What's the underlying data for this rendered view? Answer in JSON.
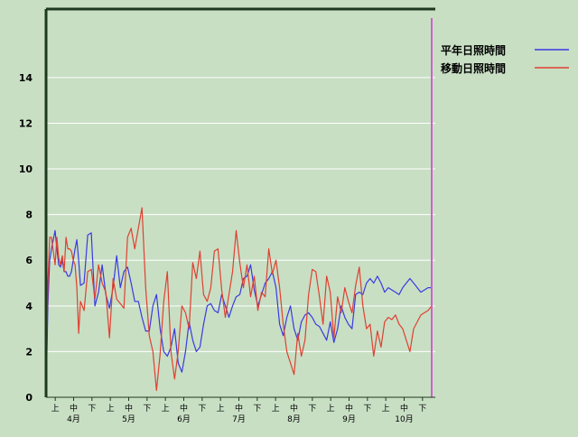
{
  "chart_data": {
    "type": "line",
    "title": "",
    "xlabel": "",
    "ylabel": "",
    "ylim": [
      0,
      17
    ],
    "y_ticks": [
      0,
      2,
      4,
      6,
      8,
      10,
      12,
      14
    ],
    "grid": "horizontal",
    "legend_position": "top-right",
    "x_range": [
      "2024-04-01",
      "2024-10-31"
    ],
    "period_labels": [
      "上",
      "中",
      "下",
      "上",
      "中",
      "下",
      "上",
      "中",
      "下",
      "上",
      "中",
      "下",
      "上",
      "中",
      "下",
      "上",
      "中",
      "下",
      "上",
      "中",
      "下"
    ],
    "month_labels": [
      "4月",
      "5月",
      "6月",
      "7月",
      "8月",
      "9月",
      "10月"
    ],
    "colors": {
      "background": "#c8dfc4",
      "axis": "#1e3a1e",
      "grid": "#ffffff",
      "series_1": "#3a3ae0",
      "series_2": "#e04030",
      "marker": "#d060d0"
    },
    "marker_line": {
      "date": "2024-10-31"
    },
    "series": [
      {
        "name": "平年日照時間",
        "x": [
          "2024-04-01",
          "2024-04-02",
          "2024-04-03",
          "2024-04-04",
          "2024-04-05",
          "2024-04-06",
          "2024-04-07",
          "2024-04-08",
          "2024-04-09",
          "2024-04-10",
          "2024-04-11",
          "2024-04-12",
          "2024-04-13",
          "2024-04-14",
          "2024-04-15",
          "2024-04-16",
          "2024-04-17",
          "2024-04-18",
          "2024-04-19",
          "2024-04-20",
          "2024-04-22",
          "2024-04-24",
          "2024-04-26",
          "2024-04-28",
          "2024-04-30",
          "2024-05-02",
          "2024-05-04",
          "2024-05-06",
          "2024-05-08",
          "2024-05-10",
          "2024-05-12",
          "2024-05-14",
          "2024-05-16",
          "2024-05-18",
          "2024-05-20",
          "2024-05-22",
          "2024-05-24",
          "2024-05-26",
          "2024-05-28",
          "2024-05-30",
          "2024-06-01",
          "2024-06-03",
          "2024-06-05",
          "2024-06-07",
          "2024-06-09",
          "2024-06-11",
          "2024-06-13",
          "2024-06-15",
          "2024-06-17",
          "2024-06-19",
          "2024-06-21",
          "2024-06-23",
          "2024-06-25",
          "2024-06-27",
          "2024-06-29",
          "2024-07-01",
          "2024-07-03",
          "2024-07-05",
          "2024-07-07",
          "2024-07-09",
          "2024-07-11",
          "2024-07-13",
          "2024-07-15",
          "2024-07-17",
          "2024-07-19",
          "2024-07-21",
          "2024-07-23",
          "2024-07-25",
          "2024-07-27",
          "2024-07-29",
          "2024-07-31",
          "2024-08-02",
          "2024-08-04",
          "2024-08-06",
          "2024-08-08",
          "2024-08-10",
          "2024-08-12",
          "2024-08-14",
          "2024-08-16",
          "2024-08-18",
          "2024-08-20",
          "2024-08-22",
          "2024-08-24",
          "2024-08-26",
          "2024-08-28",
          "2024-08-30",
          "2024-09-01",
          "2024-09-03",
          "2024-09-05",
          "2024-09-07",
          "2024-09-09",
          "2024-09-11",
          "2024-09-13",
          "2024-09-15",
          "2024-09-17",
          "2024-09-19",
          "2024-09-21",
          "2024-09-23",
          "2024-09-25",
          "2024-09-27",
          "2024-09-29",
          "2024-10-01",
          "2024-10-03",
          "2024-10-05",
          "2024-10-07",
          "2024-10-09",
          "2024-10-11",
          "2024-10-13",
          "2024-10-15",
          "2024-10-17",
          "2024-10-19",
          "2024-10-21",
          "2024-10-23",
          "2024-10-25",
          "2024-10-27",
          "2024-10-29",
          "2024-10-31"
        ],
        "y": [
          0,
          4,
          6,
          6.5,
          6.9,
          7.3,
          6.5,
          5.8,
          5.7,
          6.0,
          5.5,
          5.5,
          5.3,
          5.3,
          5.5,
          6.0,
          6.5,
          6.9,
          6.0,
          4.9,
          5.0,
          7.1,
          7.2,
          4.0,
          4.6,
          5.8,
          4.5,
          3.9,
          4.8,
          6.2,
          4.8,
          5.5,
          5.7,
          5.0,
          4.2,
          4.2,
          3.5,
          2.9,
          2.9,
          4.0,
          4.5,
          3.0,
          2.0,
          1.8,
          2.2,
          3.0,
          1.5,
          1.1,
          2.0,
          3.3,
          2.5,
          2.0,
          2.2,
          3.2,
          4.0,
          4.1,
          3.8,
          3.7,
          4.5,
          4.0,
          3.5,
          4.0,
          4.4,
          4.5,
          5.2,
          5.3,
          5.8,
          4.7,
          4.0,
          4.5,
          5.0,
          5.2,
          5.5,
          4.8,
          3.2,
          2.7,
          3.5,
          4.0,
          3.0,
          2.5,
          3.3,
          3.6,
          3.7,
          3.5,
          3.2,
          3.1,
          2.8,
          2.5,
          3.3,
          2.4,
          3.0,
          4.0,
          3.5,
          3.2,
          3.0,
          4.5,
          4.6,
          4.5,
          5.0,
          5.2,
          5.0,
          5.3,
          5.0,
          4.6,
          4.8,
          4.7,
          4.6,
          4.5,
          4.8,
          5.0,
          5.2,
          5.0,
          4.8,
          4.6,
          4.7,
          4.8,
          4.8
        ]
      },
      {
        "name": "移動日照時間",
        "x": [
          "2024-04-01",
          "2024-04-02",
          "2024-04-03",
          "2024-04-04",
          "2024-04-05",
          "2024-04-06",
          "2024-04-07",
          "2024-04-08",
          "2024-04-09",
          "2024-04-10",
          "2024-04-11",
          "2024-04-12",
          "2024-04-13",
          "2024-04-14",
          "2024-04-15",
          "2024-04-16",
          "2024-04-17",
          "2024-04-18",
          "2024-04-19",
          "2024-04-20",
          "2024-04-22",
          "2024-04-24",
          "2024-04-26",
          "2024-04-28",
          "2024-04-30",
          "2024-05-02",
          "2024-05-04",
          "2024-05-06",
          "2024-05-08",
          "2024-05-10",
          "2024-05-12",
          "2024-05-14",
          "2024-05-16",
          "2024-05-18",
          "2024-05-20",
          "2024-05-22",
          "2024-05-24",
          "2024-05-26",
          "2024-05-28",
          "2024-05-30",
          "2024-06-01",
          "2024-06-03",
          "2024-06-05",
          "2024-06-07",
          "2024-06-09",
          "2024-06-11",
          "2024-06-13",
          "2024-06-15",
          "2024-06-17",
          "2024-06-19",
          "2024-06-21",
          "2024-06-23",
          "2024-06-25",
          "2024-06-27",
          "2024-06-29",
          "2024-07-01",
          "2024-07-03",
          "2024-07-05",
          "2024-07-07",
          "2024-07-09",
          "2024-07-11",
          "2024-07-13",
          "2024-07-15",
          "2024-07-17",
          "2024-07-19",
          "2024-07-21",
          "2024-07-23",
          "2024-07-25",
          "2024-07-27",
          "2024-07-29",
          "2024-07-31",
          "2024-08-02",
          "2024-08-04",
          "2024-08-06",
          "2024-08-08",
          "2024-08-10",
          "2024-08-12",
          "2024-08-14",
          "2024-08-16",
          "2024-08-18",
          "2024-08-20",
          "2024-08-22",
          "2024-08-24",
          "2024-08-26",
          "2024-08-28",
          "2024-08-30",
          "2024-09-01",
          "2024-09-03",
          "2024-09-05",
          "2024-09-07",
          "2024-09-09",
          "2024-09-11",
          "2024-09-13",
          "2024-09-15",
          "2024-09-17",
          "2024-09-19",
          "2024-09-21",
          "2024-09-23",
          "2024-09-25",
          "2024-09-27",
          "2024-09-29",
          "2024-10-01",
          "2024-10-03",
          "2024-10-05",
          "2024-10-07",
          "2024-10-09",
          "2024-10-11",
          "2024-10-13",
          "2024-10-15",
          "2024-10-17",
          "2024-10-19",
          "2024-10-21",
          "2024-10-23",
          "2024-10-25",
          "2024-10-27",
          "2024-10-29",
          "2024-10-31"
        ],
        "y": [
          0,
          5,
          7,
          7,
          6.4,
          5.8,
          7.0,
          6.1,
          5.8,
          6.2,
          5.5,
          7.0,
          6.5,
          6.5,
          6.4,
          6.0,
          5.8,
          4.8,
          2.8,
          4.2,
          3.8,
          5.5,
          5.6,
          4.3,
          5.8,
          5.0,
          4.6,
          2.6,
          5.2,
          4.3,
          4.1,
          3.9,
          7.0,
          7.4,
          6.5,
          7.4,
          8.3,
          4.8,
          2.7,
          2.0,
          0.3,
          1.9,
          4.2,
          5.5,
          2.0,
          0.8,
          2.0,
          4.0,
          3.7,
          3.0,
          5.9,
          5.2,
          6.4,
          4.5,
          4.2,
          4.8,
          6.4,
          6.5,
          4.7,
          3.5,
          4.5,
          5.5,
          7.3,
          5.9,
          4.8,
          5.8,
          4.4,
          5.3,
          3.8,
          4.6,
          4.4,
          6.5,
          5.4,
          6.0,
          4.8,
          3.2,
          2.0,
          1.5,
          1.0,
          2.8,
          1.8,
          2.5,
          4.5,
          5.6,
          5.5,
          4.4,
          3.2,
          5.3,
          4.6,
          2.6,
          4.4,
          3.7,
          4.8,
          4.2,
          3.7,
          4.9,
          5.7,
          4.0,
          3.0,
          3.2,
          1.8,
          2.9,
          2.2,
          3.3,
          3.5,
          3.4,
          3.6,
          3.2,
          3.0,
          2.5,
          2.0,
          3.0,
          3.3,
          3.6,
          3.7,
          3.8,
          4.0
        ]
      }
    ]
  }
}
